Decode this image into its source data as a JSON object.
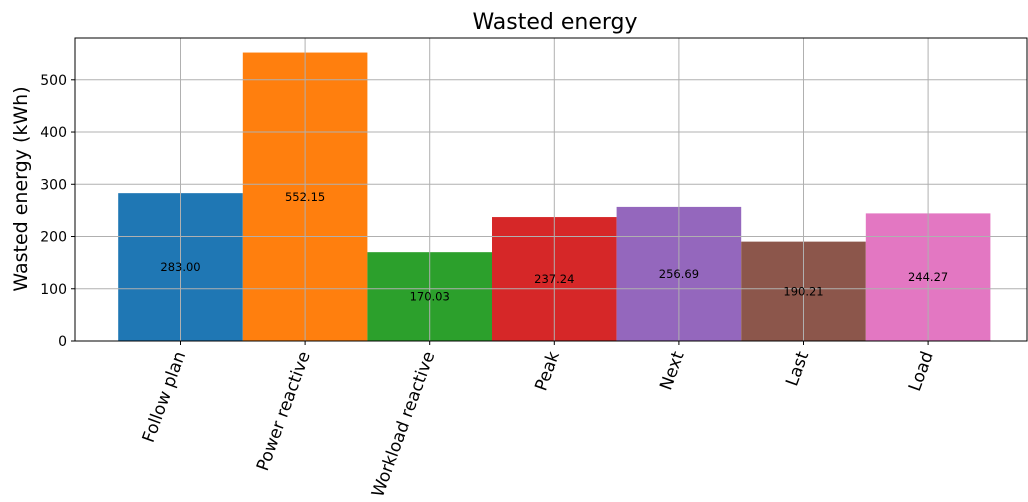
{
  "chart_data": {
    "type": "bar",
    "title": "Wasted energy",
    "xlabel": "",
    "ylabel": "Wasted energy (kWh)",
    "categories": [
      "Follow plan",
      "Power reactive",
      "Workload reactive",
      "Peak",
      "Next",
      "Last",
      "Load"
    ],
    "values": [
      283.0,
      552.15,
      170.03,
      237.24,
      256.69,
      190.21,
      244.27
    ],
    "value_labels": [
      "283.00",
      "552.15",
      "170.03",
      "237.24",
      "256.69",
      "190.21",
      "244.27"
    ],
    "colors": [
      "#1f77b4",
      "#ff7f0e",
      "#2ca02c",
      "#d62728",
      "#9467bd",
      "#8c564b",
      "#e377c2"
    ],
    "yticks": [
      0,
      100,
      200,
      300,
      400,
      500
    ],
    "ylim": [
      0,
      580
    ],
    "grid": true,
    "legend": "none"
  }
}
